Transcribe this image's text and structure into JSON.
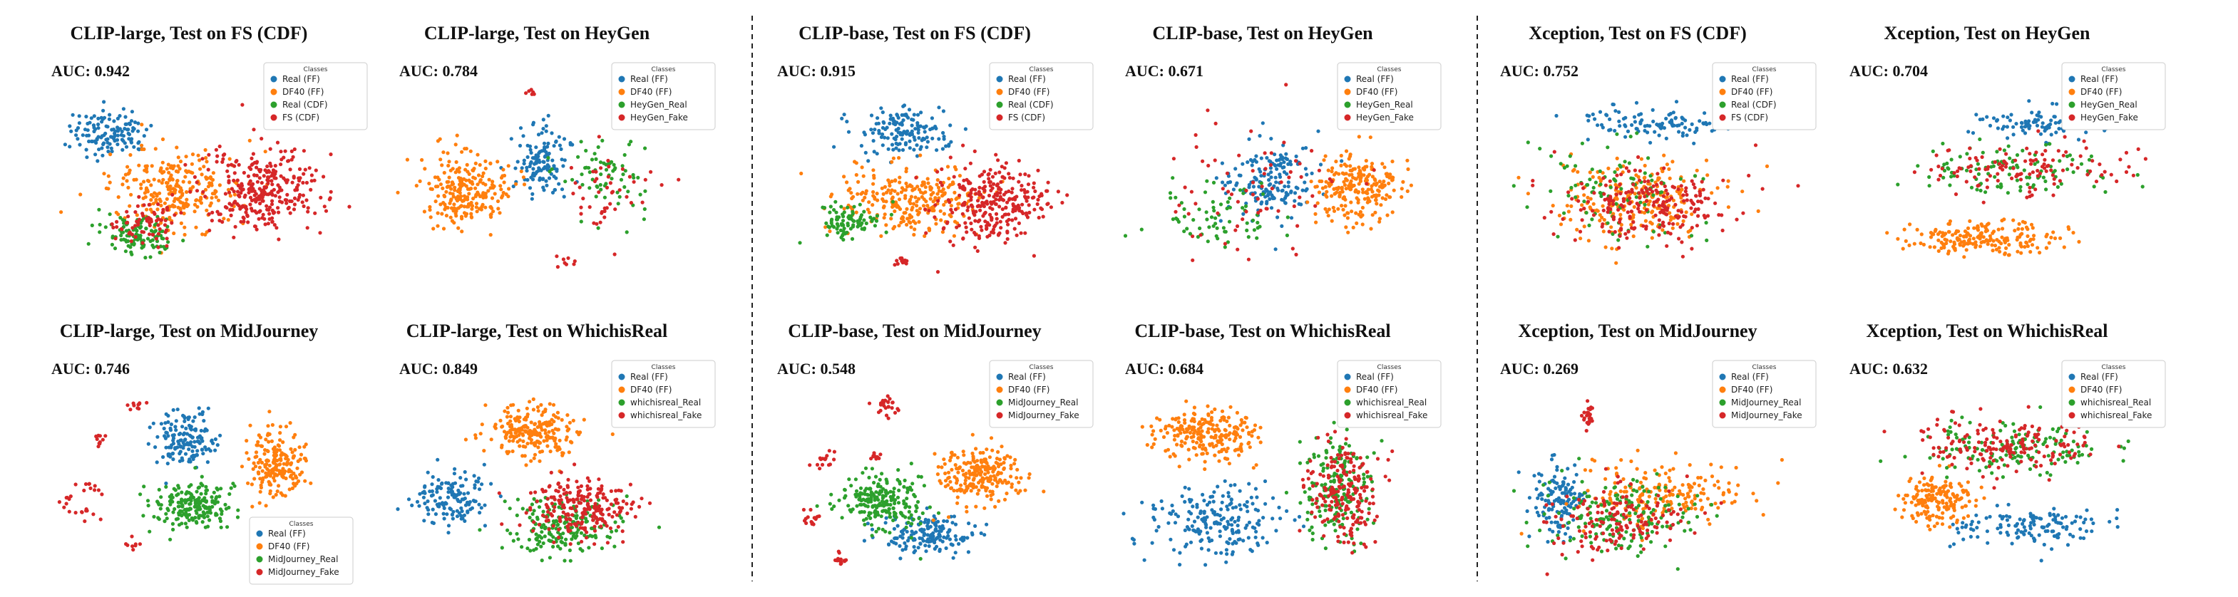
{
  "colors": {
    "blue": "#1f77b4",
    "orange": "#ff7f0e",
    "green": "#2ca02c",
    "red": "#d62728"
  },
  "chart_data": [
    {
      "type": "scatter",
      "title": "CLIP-large, Test on FS (CDF)",
      "auc_label": "AUC: 0.942",
      "legend_title": "Classes",
      "legend_position": "top-right",
      "series": [
        {
          "name": "Real (FF)",
          "color": "#1f77b4",
          "clusters": [
            [
              0.2,
              0.25,
              0.13,
              0.12,
              130
            ]
          ]
        },
        {
          "name": "DF40 (FF)",
          "color": "#ff7f0e",
          "clusters": [
            [
              0.42,
              0.55,
              0.22,
              0.2,
              260
            ]
          ]
        },
        {
          "name": "Real (CDF)",
          "color": "#2ca02c",
          "clusters": [
            [
              0.3,
              0.78,
              0.12,
              0.1,
              110
            ]
          ]
        },
        {
          "name": "FS (CDF)",
          "color": "#d62728",
          "clusters": [
            [
              0.7,
              0.55,
              0.2,
              0.22,
              300
            ],
            [
              0.32,
              0.72,
              0.1,
              0.12,
              70
            ]
          ]
        }
      ]
    },
    {
      "type": "scatter",
      "title": "CLIP-large, Test on HeyGen",
      "auc_label": "AUC: 0.784",
      "legend_title": "Classes",
      "legend_position": "top-right",
      "series": [
        {
          "name": "Real (FF)",
          "color": "#1f77b4",
          "clusters": [
            [
              0.48,
              0.4,
              0.09,
              0.18,
              130
            ]
          ]
        },
        {
          "name": "DF40 (FF)",
          "color": "#ff7f0e",
          "clusters": [
            [
              0.23,
              0.55,
              0.14,
              0.18,
              240
            ]
          ]
        },
        {
          "name": "HeyGen_Real",
          "color": "#2ca02c",
          "clusters": [
            [
              0.7,
              0.45,
              0.15,
              0.22,
              70
            ]
          ]
        },
        {
          "name": "HeyGen_Fake",
          "color": "#d62728",
          "clusters": [
            [
              0.7,
              0.55,
              0.16,
              0.26,
              45
            ],
            [
              0.45,
              0.05,
              0.02,
              0.03,
              6
            ],
            [
              0.55,
              0.92,
              0.04,
              0.04,
              8
            ]
          ]
        }
      ]
    },
    {
      "type": "scatter",
      "title": "CLIP-base, Test on FS (CDF)",
      "auc_label": "AUC: 0.915",
      "legend_title": "Classes",
      "legend_position": "top-right",
      "series": [
        {
          "name": "Real (FF)",
          "color": "#1f77b4",
          "clusters": [
            [
              0.42,
              0.25,
              0.15,
              0.12,
              150
            ]
          ]
        },
        {
          "name": "DF40 (FF)",
          "color": "#ff7f0e",
          "clusters": [
            [
              0.45,
              0.6,
              0.22,
              0.18,
              260
            ]
          ]
        },
        {
          "name": "Real (CDF)",
          "color": "#2ca02c",
          "clusters": [
            [
              0.25,
              0.72,
              0.1,
              0.1,
              90
            ]
          ]
        },
        {
          "name": "FS (CDF)",
          "color": "#d62728",
          "clusters": [
            [
              0.72,
              0.62,
              0.18,
              0.2,
              280
            ],
            [
              0.42,
              0.92,
              0.03,
              0.03,
              15
            ]
          ]
        }
      ]
    },
    {
      "type": "scatter",
      "title": "CLIP-base, Test on HeyGen",
      "auc_label": "AUC: 0.671",
      "legend_title": "Classes",
      "legend_position": "top-right",
      "series": [
        {
          "name": "Real (FF)",
          "color": "#1f77b4",
          "clusters": [
            [
              0.48,
              0.5,
              0.15,
              0.2,
              170
            ]
          ]
        },
        {
          "name": "DF40 (FF)",
          "color": "#ff7f0e",
          "clusters": [
            [
              0.78,
              0.55,
              0.14,
              0.18,
              230
            ]
          ]
        },
        {
          "name": "HeyGen_Real",
          "color": "#2ca02c",
          "clusters": [
            [
              0.3,
              0.7,
              0.2,
              0.2,
              70
            ]
          ]
        },
        {
          "name": "HeyGen_Fake",
          "color": "#d62728",
          "clusters": [
            [
              0.45,
              0.55,
              0.3,
              0.35,
              70
            ],
            [
              0.92,
              0.18,
              0.04,
              0.04,
              10
            ]
          ]
        }
      ]
    },
    {
      "type": "scatter",
      "title": "Xception, Test on FS (CDF)",
      "auc_label": "AUC: 0.752",
      "legend_title": "Classes",
      "legend_position": "top-right",
      "series": [
        {
          "name": "Real (FF)",
          "color": "#1f77b4",
          "clusters": [
            [
              0.55,
              0.2,
              0.25,
              0.08,
              110
            ]
          ]
        },
        {
          "name": "DF40 (FF)",
          "color": "#ff7f0e",
          "clusters": [
            [
              0.45,
              0.6,
              0.28,
              0.2,
              230
            ]
          ]
        },
        {
          "name": "Real (CDF)",
          "color": "#2ca02c",
          "clusters": [
            [
              0.4,
              0.55,
              0.25,
              0.25,
              100
            ]
          ]
        },
        {
          "name": "FS (CDF)",
          "color": "#d62728",
          "clusters": [
            [
              0.5,
              0.62,
              0.28,
              0.2,
              220
            ]
          ]
        }
      ]
    },
    {
      "type": "scatter",
      "title": "Xception, Test on HeyGen",
      "auc_label": "AUC: 0.704",
      "legend_title": "Classes",
      "legend_position": "top-right",
      "series": [
        {
          "name": "Real (FF)",
          "color": "#1f77b4",
          "clusters": [
            [
              0.65,
              0.2,
              0.22,
              0.08,
              100
            ]
          ]
        },
        {
          "name": "DF40 (FF)",
          "color": "#ff7f0e",
          "clusters": [
            [
              0.45,
              0.8,
              0.25,
              0.08,
              200
            ]
          ]
        },
        {
          "name": "HeyGen_Real",
          "color": "#2ca02c",
          "clusters": [
            [
              0.55,
              0.45,
              0.35,
              0.12,
              110
            ]
          ]
        },
        {
          "name": "HeyGen_Fake",
          "color": "#d62728",
          "clusters": [
            [
              0.6,
              0.45,
              0.35,
              0.14,
              120
            ]
          ]
        }
      ]
    },
    {
      "type": "scatter",
      "title": "CLIP-large, Test on MidJourney",
      "auc_label": "AUC: 0.746",
      "legend_title": "Classes",
      "legend_position": "bottom-right",
      "series": [
        {
          "name": "Real (FF)",
          "color": "#1f77b4",
          "clusters": [
            [
              0.45,
              0.3,
              0.1,
              0.15,
              150
            ]
          ]
        },
        {
          "name": "DF40 (FF)",
          "color": "#ff7f0e",
          "clusters": [
            [
              0.75,
              0.42,
              0.1,
              0.16,
              200
            ]
          ]
        },
        {
          "name": "MidJourney_Real",
          "color": "#2ca02c",
          "clusters": [
            [
              0.48,
              0.65,
              0.14,
              0.12,
              200
            ]
          ]
        },
        {
          "name": "MidJourney_Fake",
          "color": "#d62728",
          "clusters": [
            [
              0.14,
              0.55,
              0.05,
              0.04,
              10
            ],
            [
              0.06,
              0.62,
              0.03,
              0.04,
              8
            ],
            [
              0.17,
              0.3,
              0.03,
              0.03,
              10
            ],
            [
              0.12,
              0.68,
              0.04,
              0.04,
              10
            ],
            [
              0.28,
              0.85,
              0.03,
              0.04,
              8
            ],
            [
              0.3,
              0.12,
              0.03,
              0.03,
              10
            ]
          ]
        }
      ]
    },
    {
      "type": "scatter",
      "title": "CLIP-large, Test on WhichisReal",
      "auc_label": "AUC: 0.849",
      "legend_title": "Classes",
      "legend_position": "top-right",
      "series": [
        {
          "name": "Real (FF)",
          "color": "#1f77b4",
          "clusters": [
            [
              0.18,
              0.6,
              0.12,
              0.14,
              140
            ]
          ]
        },
        {
          "name": "DF40 (FF)",
          "color": "#ff7f0e",
          "clusters": [
            [
              0.45,
              0.25,
              0.15,
              0.13,
              220
            ]
          ]
        },
        {
          "name": "whichisreal_Real",
          "color": "#2ca02c",
          "clusters": [
            [
              0.55,
              0.75,
              0.18,
              0.15,
              200
            ]
          ]
        },
        {
          "name": "whichisreal_Fake",
          "color": "#d62728",
          "clusters": [
            [
              0.62,
              0.65,
              0.18,
              0.15,
              230
            ]
          ]
        }
      ]
    },
    {
      "type": "scatter",
      "title": "CLIP-base, Test on MidJourney",
      "auc_label": "AUC: 0.548",
      "legend_title": "Classes",
      "legend_position": "top-right",
      "series": [
        {
          "name": "Real (FF)",
          "color": "#1f77b4",
          "clusters": [
            [
              0.5,
              0.8,
              0.15,
              0.1,
              160
            ]
          ]
        },
        {
          "name": "DF40 (FF)",
          "color": "#ff7f0e",
          "clusters": [
            [
              0.68,
              0.48,
              0.13,
              0.15,
              230
            ]
          ]
        },
        {
          "name": "MidJourney_Real",
          "color": "#2ca02c",
          "clusters": [
            [
              0.35,
              0.62,
              0.14,
              0.14,
              220
            ]
          ]
        },
        {
          "name": "MidJourney_Fake",
          "color": "#d62728",
          "clusters": [
            [
              0.38,
              0.13,
              0.05,
              0.05,
              25
            ],
            [
              0.15,
              0.42,
              0.04,
              0.05,
              15
            ],
            [
              0.12,
              0.72,
              0.04,
              0.04,
              15
            ],
            [
              0.22,
              0.92,
              0.04,
              0.04,
              15
            ],
            [
              0.33,
              0.38,
              0.03,
              0.03,
              10
            ]
          ]
        }
      ]
    },
    {
      "type": "scatter",
      "title": "CLIP-base, Test on WhichisReal",
      "auc_label": "AUC: 0.684",
      "legend_title": "Classes",
      "legend_position": "top-right",
      "series": [
        {
          "name": "Real (FF)",
          "color": "#1f77b4",
          "clusters": [
            [
              0.3,
              0.72,
              0.22,
              0.18,
              200
            ]
          ]
        },
        {
          "name": "DF40 (FF)",
          "color": "#ff7f0e",
          "clusters": [
            [
              0.28,
              0.28,
              0.16,
              0.14,
              230
            ]
          ]
        },
        {
          "name": "whichisreal_Real",
          "color": "#2ca02c",
          "clusters": [
            [
              0.72,
              0.55,
              0.12,
              0.28,
              190
            ]
          ]
        },
        {
          "name": "whichisreal_Fake",
          "color": "#d62728",
          "clusters": [
            [
              0.73,
              0.55,
              0.11,
              0.28,
              200
            ]
          ]
        }
      ]
    },
    {
      "type": "scatter",
      "title": "Xception, Test on MidJourney",
      "auc_label": "AUC: 0.269",
      "legend_title": "Classes",
      "legend_position": "top-right",
      "series": [
        {
          "name": "Real (FF)",
          "color": "#1f77b4",
          "clusters": [
            [
              0.2,
              0.62,
              0.08,
              0.2,
              130
            ]
          ]
        },
        {
          "name": "DF40 (FF)",
          "color": "#ff7f0e",
          "clusters": [
            [
              0.55,
              0.6,
              0.28,
              0.18,
              200
            ]
          ]
        },
        {
          "name": "MidJourney_Real",
          "color": "#2ca02c",
          "clusters": [
            [
              0.4,
              0.7,
              0.25,
              0.2,
              170
            ]
          ]
        },
        {
          "name": "MidJourney_Fake",
          "color": "#d62728",
          "clusters": [
            [
              0.38,
              0.72,
              0.22,
              0.18,
              150
            ],
            [
              0.3,
              0.18,
              0.02,
              0.07,
              25
            ]
          ]
        }
      ]
    },
    {
      "type": "scatter",
      "title": "Xception, Test on WhichisReal",
      "auc_label": "AUC: 0.632",
      "legend_title": "Classes",
      "legend_position": "top-right",
      "series": [
        {
          "name": "Real (FF)",
          "color": "#1f77b4",
          "clusters": [
            [
              0.6,
              0.75,
              0.25,
              0.1,
              130
            ]
          ]
        },
        {
          "name": "DF40 (FF)",
          "color": "#ff7f0e",
          "clusters": [
            [
              0.3,
              0.62,
              0.12,
              0.12,
              180
            ]
          ]
        },
        {
          "name": "whichisreal_Real",
          "color": "#2ca02c",
          "clusters": [
            [
              0.55,
              0.35,
              0.3,
              0.14,
              150
            ]
          ]
        },
        {
          "name": "whichisreal_Fake",
          "color": "#d62728",
          "clusters": [
            [
              0.55,
              0.32,
              0.3,
              0.14,
              170
            ]
          ]
        }
      ]
    }
  ]
}
